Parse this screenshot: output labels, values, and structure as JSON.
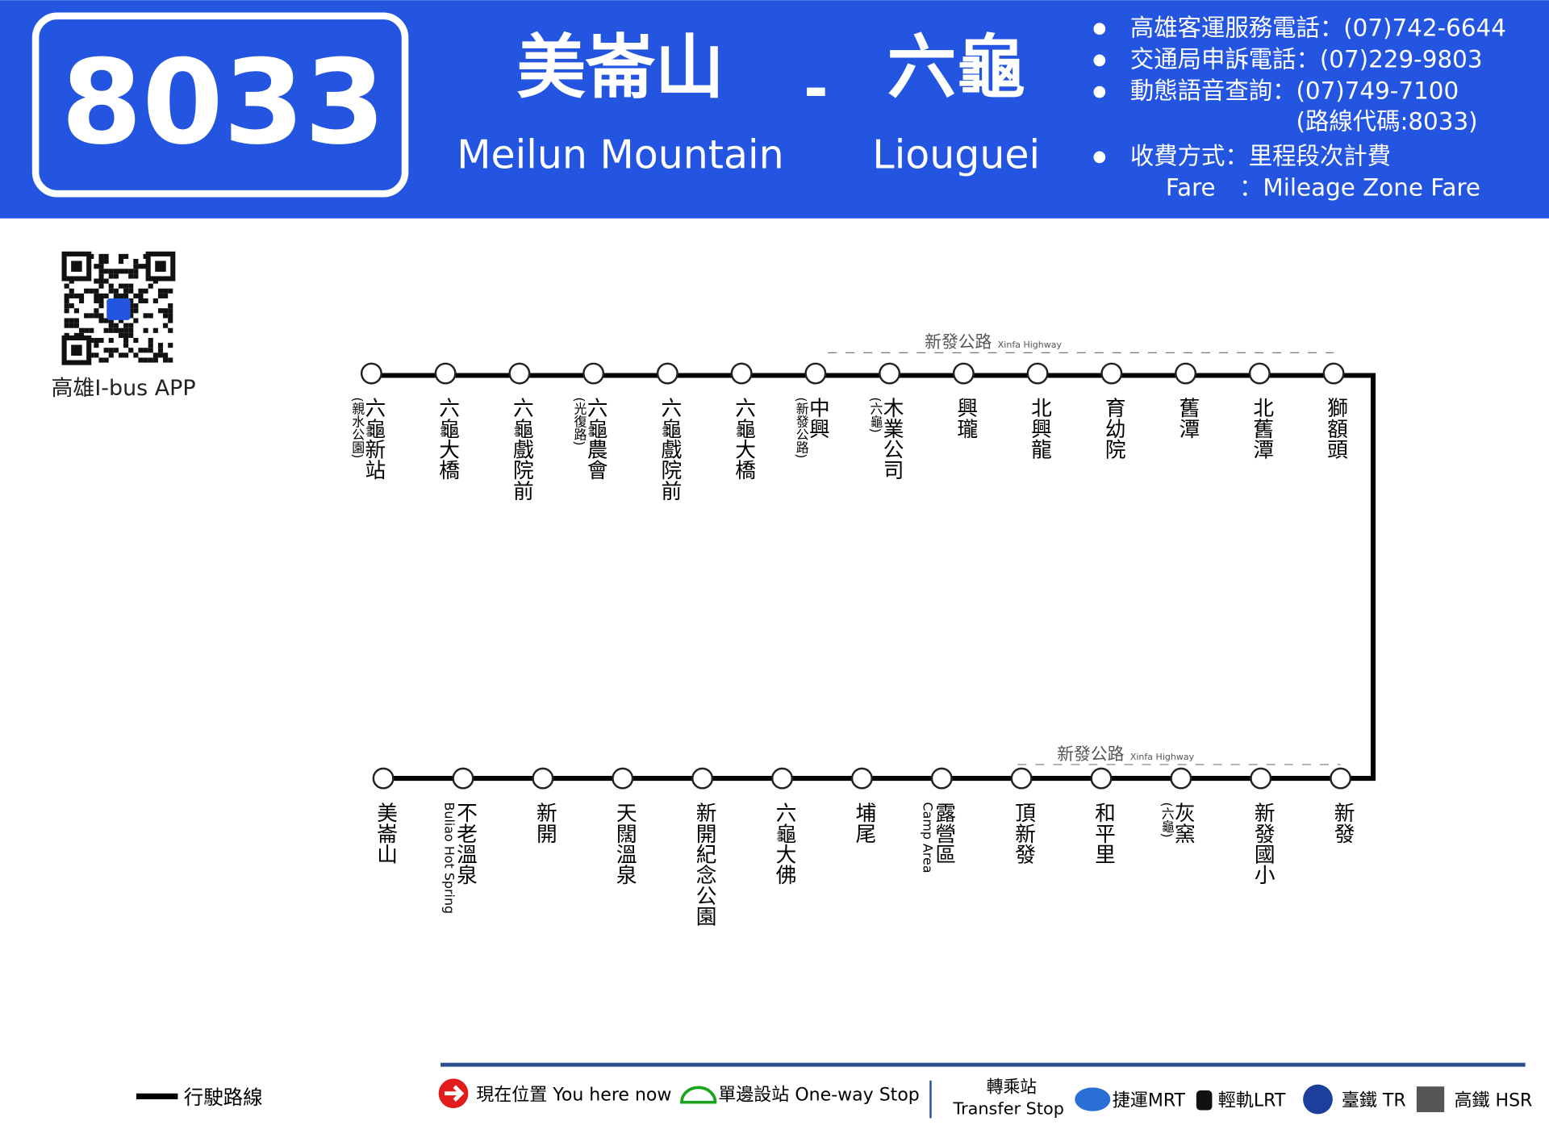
{
  "header": {
    "route": "8033",
    "origin_zh": "美崙山",
    "origin_en": "Meilun Mountain",
    "dash": "-",
    "dest_zh": "六龜",
    "dest_en": "Liouguei",
    "info": [
      "高雄客運服務電話：(07)742-6644",
      "交通局申訴電話：(07)229-9803",
      "動態語音查詢：(07)749-7100",
      "(路線代碼:8033)",
      "收費方式：里程段次計費",
      "Fare　：Mileage Zone Fare"
    ]
  },
  "qr_label": "高雄I-bus APP",
  "top_highway": {
    "zh": "新發公路",
    "en": "Xinfa Highway"
  },
  "bottom_highway": {
    "zh": "新發公路",
    "en": "Xinfa Highway"
  },
  "top_stops": [
    {
      "name": "六龜新站",
      "sub": "(親水公園)"
    },
    {
      "name": "六龜大橋"
    },
    {
      "name": "六龜戲院前"
    },
    {
      "name": "六龜農會",
      "sub": "(光復路)"
    },
    {
      "name": "六龜戲院前"
    },
    {
      "name": "六龜大橋"
    },
    {
      "name": "中興",
      "sub": "(新發公路)"
    },
    {
      "name": "木業公司",
      "sub": "(六龜)"
    },
    {
      "name": "興瓏"
    },
    {
      "name": "北興龍"
    },
    {
      "name": "育幼院"
    },
    {
      "name": "舊潭"
    },
    {
      "name": "北舊潭"
    },
    {
      "name": "獅額頭"
    }
  ],
  "bottom_stops": [
    {
      "name": "美崙山"
    },
    {
      "name": "不老溫泉",
      "sub": "Buliao Hot Spring"
    },
    {
      "name": "新開"
    },
    {
      "name": "天闊溫泉"
    },
    {
      "name": "新開紀念公園"
    },
    {
      "name": "六龜大佛"
    },
    {
      "name": "埔尾"
    },
    {
      "name": "露營區",
      "sub": "Camp Area"
    },
    {
      "name": "頂新發"
    },
    {
      "name": "和平里"
    },
    {
      "name": "灰窯",
      "sub": "(六龜)"
    },
    {
      "name": "新發國小"
    },
    {
      "name": "新發"
    }
  ],
  "legend": {
    "route": "行駛路線",
    "here": "現在位置 You here now",
    "oneway": "單邊設站 One-way Stop",
    "transfer_zh": "轉乘站",
    "transfer_en": "Transfer Stop",
    "mrt": "捷運MRT",
    "lrt": "輕軌LRT",
    "tr": "臺鐵 TR",
    "hsr": "高鐵 HSR"
  }
}
